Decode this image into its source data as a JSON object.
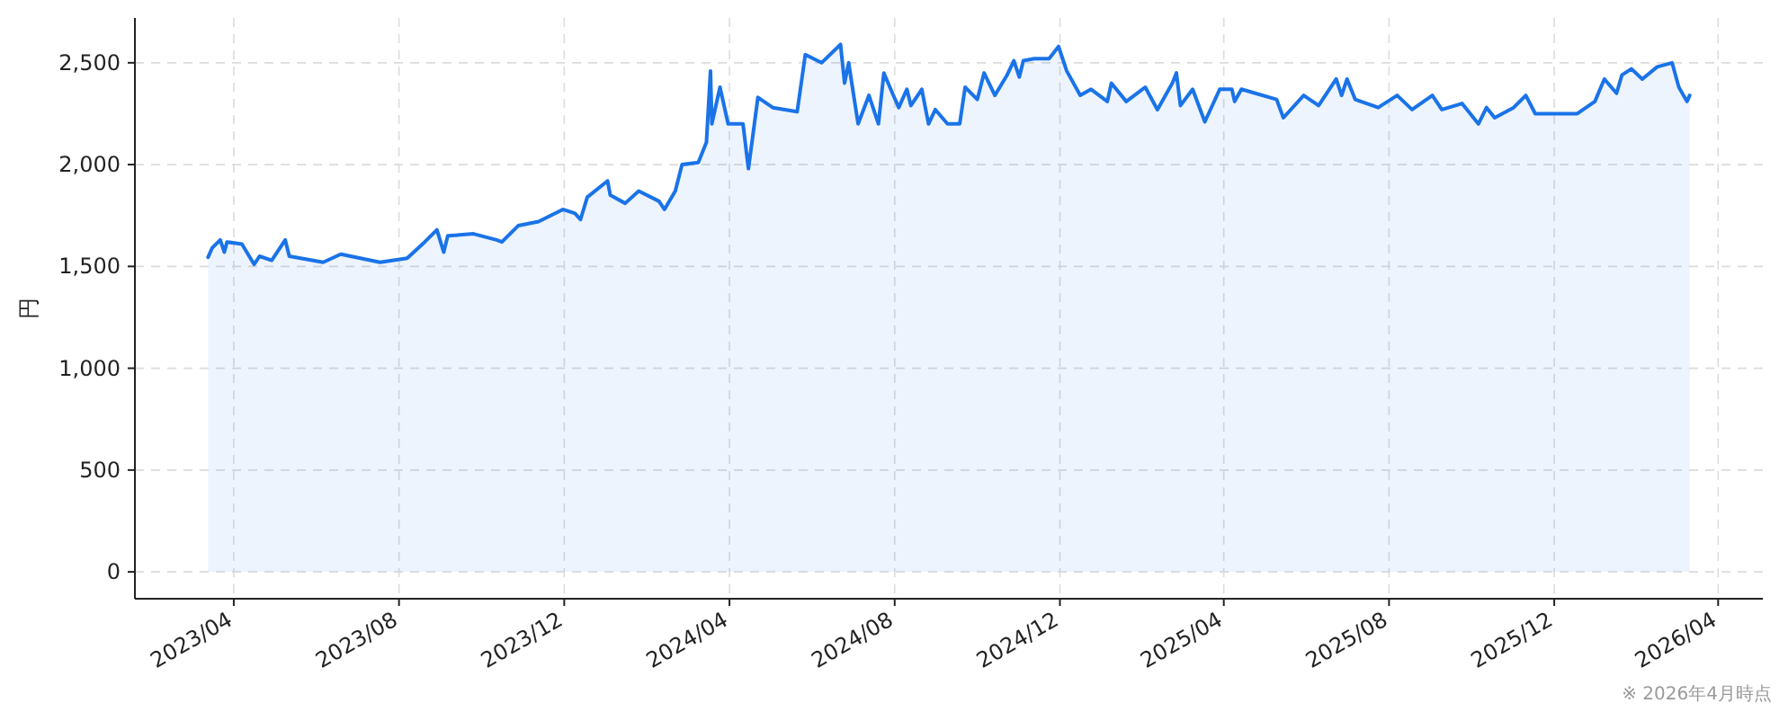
{
  "chart_data": {
    "type": "area",
    "ylabel": "円",
    "annotations": [
      "※ 2026年4月時点"
    ],
    "grid": true,
    "xlim": [
      "2023-01-18",
      "2026-05-04"
    ],
    "ylim": [
      -132,
      2720
    ],
    "xticks": [
      {
        "value": "2023-04-01",
        "label": "2023/04"
      },
      {
        "value": "2023-08-01",
        "label": "2023/08"
      },
      {
        "value": "2023-12-01",
        "label": "2023/12"
      },
      {
        "value": "2024-04-01",
        "label": "2024/04"
      },
      {
        "value": "2024-08-01",
        "label": "2024/08"
      },
      {
        "value": "2024-12-01",
        "label": "2024/12"
      },
      {
        "value": "2025-04-01",
        "label": "2025/04"
      },
      {
        "value": "2025-08-01",
        "label": "2025/08"
      },
      {
        "value": "2025-12-01",
        "label": "2025/12"
      },
      {
        "value": "2026-04-01",
        "label": "2026/04"
      }
    ],
    "yticks": [
      0,
      500,
      {
        "value": 1000,
        "label": "1,000"
      },
      {
        "value": 1500,
        "label": "1,500"
      },
      {
        "value": 2000,
        "label": "2,000"
      },
      {
        "value": 2500,
        "label": "2,500"
      }
    ],
    "x": [
      "2023-03-13",
      "2023-03-16",
      "2023-03-22",
      "2023-03-25",
      "2023-03-27",
      "2023-04-07",
      "2023-04-16",
      "2023-04-20",
      "2023-04-29",
      "2023-05-09",
      "2023-05-12",
      "2023-06-06",
      "2023-06-19",
      "2023-07-18",
      "2023-08-07",
      "2023-08-20",
      "2023-08-29",
      "2023-09-03",
      "2023-09-06",
      "2023-09-25",
      "2023-10-12",
      "2023-10-16",
      "2023-10-28",
      "2023-11-12",
      "2023-11-30",
      "2023-12-09",
      "2023-12-13",
      "2023-12-18",
      "2024-01-02",
      "2024-01-04",
      "2024-01-15",
      "2024-01-25",
      "2024-02-09",
      "2024-02-13",
      "2024-02-21",
      "2024-02-26",
      "2024-03-09",
      "2024-03-15",
      "2024-03-18",
      "2024-03-19",
      "2024-03-25",
      "2024-03-31",
      "2024-04-11",
      "2024-04-15",
      "2024-04-22",
      "2024-05-03",
      "2024-05-21",
      "2024-05-27",
      "2024-06-08",
      "2024-06-22",
      "2024-06-25",
      "2024-06-28",
      "2024-07-05",
      "2024-07-13",
      "2024-07-20",
      "2024-07-24",
      "2024-07-31",
      "2024-08-04",
      "2024-08-10",
      "2024-08-13",
      "2024-08-21",
      "2024-08-26",
      "2024-08-31",
      "2024-09-09",
      "2024-09-18",
      "2024-09-22",
      "2024-10-01",
      "2024-10-06",
      "2024-10-14",
      "2024-10-23",
      "2024-10-28",
      "2024-11-01",
      "2024-11-04",
      "2024-11-12",
      "2024-11-23",
      "2024-11-30",
      "2024-12-06",
      "2024-12-16",
      "2024-12-24",
      "2025-01-05",
      "2025-01-08",
      "2025-01-19",
      "2025-02-02",
      "2025-02-11",
      "2025-02-22",
      "2025-02-25",
      "2025-02-28",
      "2025-03-09",
      "2025-03-18",
      "2025-03-29",
      "2025-04-07",
      "2025-04-09",
      "2025-04-14",
      "2025-05-10",
      "2025-05-15",
      "2025-05-30",
      "2025-06-10",
      "2025-06-23",
      "2025-06-27",
      "2025-07-01",
      "2025-07-07",
      "2025-07-24",
      "2025-08-07",
      "2025-08-18",
      "2025-09-02",
      "2025-09-09",
      "2025-09-24",
      "2025-10-06",
      "2025-10-12",
      "2025-10-18",
      "2025-11-01",
      "2025-11-10",
      "2025-11-17",
      "2025-11-30",
      "2025-12-18",
      "2025-12-31",
      "2026-01-07",
      "2026-01-16",
      "2026-01-20",
      "2026-01-27",
      "2026-02-04",
      "2026-02-15",
      "2026-02-26",
      "2026-03-03",
      "2026-03-09",
      "2026-03-11"
    ],
    "series": [
      {
        "color": "#1a73e8",
        "values": [
          1545,
          1590,
          1630,
          1570,
          1620,
          1610,
          1510,
          1550,
          1530,
          1630,
          1550,
          1520,
          1560,
          1520,
          1540,
          1620,
          1680,
          1570,
          1650,
          1660,
          1630,
          1620,
          1700,
          1720,
          1780,
          1760,
          1730,
          1840,
          1920,
          1850,
          1810,
          1870,
          1820,
          1780,
          1870,
          2000,
          2010,
          2110,
          2460,
          2200,
          2380,
          2200,
          2200,
          1980,
          2330,
          2280,
          2260,
          2540,
          2500,
          2590,
          2400,
          2500,
          2200,
          2340,
          2200,
          2450,
          2340,
          2280,
          2370,
          2290,
          2370,
          2200,
          2270,
          2200,
          2200,
          2380,
          2320,
          2450,
          2340,
          2440,
          2510,
          2430,
          2510,
          2520,
          2520,
          2580,
          2460,
          2340,
          2370,
          2310,
          2400,
          2310,
          2380,
          2270,
          2400,
          2450,
          2290,
          2370,
          2210,
          2370,
          2370,
          2310,
          2370,
          2320,
          2230,
          2340,
          2290,
          2420,
          2340,
          2420,
          2320,
          2280,
          2340,
          2270,
          2340,
          2270,
          2300,
          2200,
          2280,
          2230,
          2280,
          2340,
          2250,
          2250,
          2250,
          2310,
          2420,
          2350,
          2440,
          2470,
          2420,
          2480,
          2500,
          2380,
          2310,
          2340
        ]
      }
    ]
  }
}
